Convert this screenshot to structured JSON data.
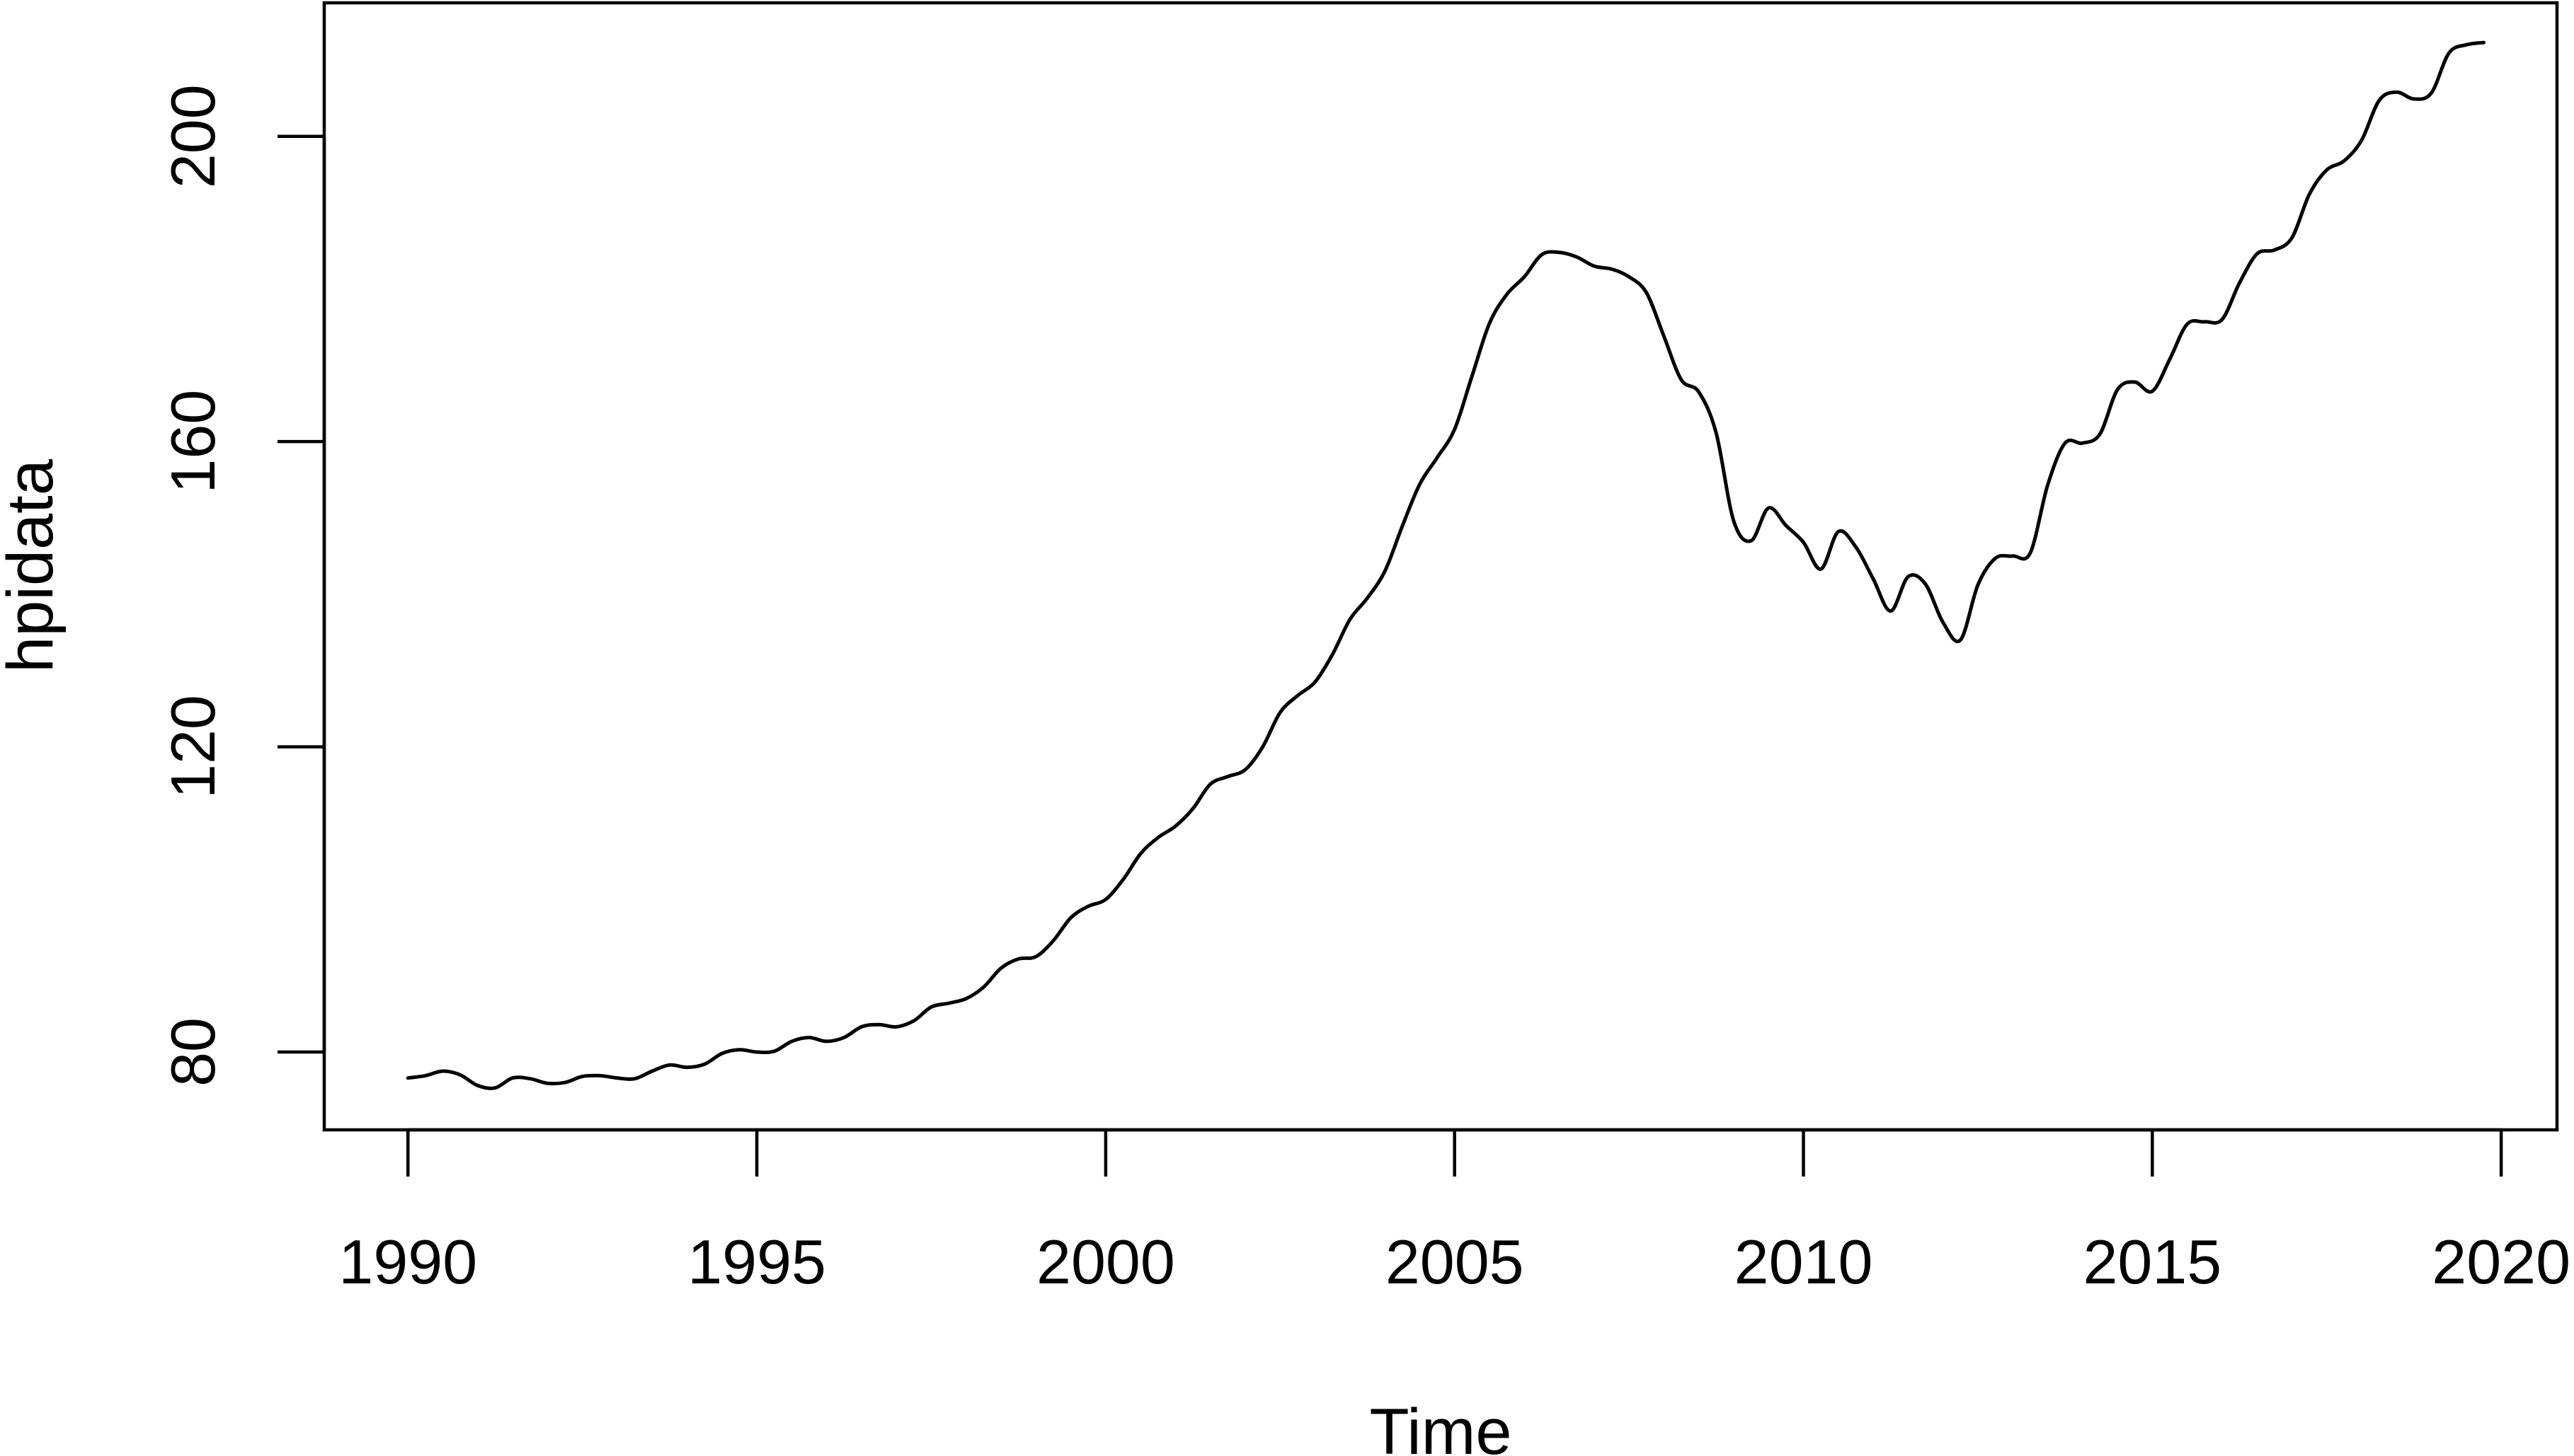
{
  "chart_data": {
    "type": "line",
    "title": "",
    "xlabel": "Time",
    "ylabel": "hpidata",
    "xlim": [
      1988.8,
      2020.8
    ],
    "ylim": [
      69.8,
      217.5
    ],
    "grid": false,
    "legend": "none",
    "x_ticks": [
      1990,
      1995,
      2000,
      2005,
      2010,
      2015,
      2020
    ],
    "y_ticks": [
      80,
      120,
      160,
      200
    ],
    "x_tick_labels": [
      "1990",
      "1995",
      "2000",
      "2005",
      "2010",
      "2015",
      "2020"
    ],
    "y_tick_labels": [
      "80",
      "120",
      "160",
      "200"
    ],
    "series": [
      {
        "line_color": "#000000",
        "x": [
          1990.0,
          1990.25,
          1990.5,
          1990.75,
          1991.0,
          1991.25,
          1991.5,
          1991.75,
          1992.0,
          1992.25,
          1992.5,
          1992.75,
          1993.0,
          1993.25,
          1993.5,
          1993.75,
          1994.0,
          1994.25,
          1994.5,
          1994.75,
          1995.0,
          1995.25,
          1995.5,
          1995.75,
          1996.0,
          1996.25,
          1996.5,
          1996.75,
          1997.0,
          1997.25,
          1997.5,
          1997.75,
          1998.0,
          1998.25,
          1998.5,
          1998.75,
          1999.0,
          1999.25,
          1999.5,
          1999.75,
          2000.0,
          2000.25,
          2000.5,
          2000.75,
          2001.0,
          2001.25,
          2001.5,
          2001.75,
          2002.0,
          2002.25,
          2002.5,
          2002.75,
          2003.0,
          2003.25,
          2003.5,
          2003.75,
          2004.0,
          2004.25,
          2004.5,
          2004.75,
          2005.0,
          2005.25,
          2005.5,
          2005.75,
          2006.0,
          2006.25,
          2006.5,
          2006.75,
          2007.0,
          2007.25,
          2007.5,
          2007.75,
          2008.0,
          2008.25,
          2008.5,
          2008.75,
          2009.0,
          2009.25,
          2009.5,
          2009.75,
          2010.0,
          2010.25,
          2010.5,
          2010.75,
          2011.0,
          2011.25,
          2011.5,
          2011.75,
          2012.0,
          2012.25,
          2012.5,
          2012.75,
          2013.0,
          2013.25,
          2013.5,
          2013.75,
          2014.0,
          2014.25,
          2014.5,
          2014.75,
          2015.0,
          2015.25,
          2015.5,
          2015.75,
          2016.0,
          2016.25,
          2016.5,
          2016.75,
          2017.0,
          2017.25,
          2017.5,
          2017.75,
          2018.0,
          2018.25,
          2018.5,
          2018.75,
          2019.0,
          2019.25,
          2019.5,
          2019.75
        ],
        "y": [
          76.6,
          76.9,
          77.5,
          77.0,
          75.6,
          75.3,
          76.6,
          76.5,
          75.9,
          76.0,
          76.8,
          76.9,
          76.6,
          76.5,
          77.5,
          78.3,
          78.0,
          78.4,
          79.8,
          80.3,
          80.0,
          80.1,
          81.4,
          81.9,
          81.4,
          81.9,
          83.3,
          83.6,
          83.3,
          84.1,
          85.9,
          86.4,
          87.0,
          88.5,
          91.0,
          92.2,
          92.5,
          94.6,
          97.6,
          99.1,
          100.0,
          102.6,
          106.0,
          108.1,
          109.6,
          111.9,
          115.1,
          116.1,
          117.0,
          120.0,
          124.5,
          126.7,
          128.5,
          132.1,
          136.7,
          139.5,
          143.0,
          148.9,
          154.4,
          157.9,
          161.6,
          168.6,
          175.5,
          179.3,
          181.6,
          184.5,
          184.8,
          184.2,
          183.0,
          182.6,
          181.6,
          179.5,
          173.8,
          168.1,
          166.5,
          161.1,
          149.6,
          147.0,
          151.3,
          149.0,
          146.8,
          143.3,
          148.2,
          146.2,
          142.0,
          137.8,
          142.3,
          141.3,
          136.3,
          134.0,
          141.2,
          144.7,
          145.0,
          145.4,
          154.3,
          159.8,
          159.8,
          161.0,
          166.8,
          167.8,
          166.6,
          170.8,
          175.4,
          175.7,
          176.0,
          180.8,
          184.6,
          185.1,
          186.7,
          192.4,
          195.6,
          196.8,
          199.5,
          204.7,
          205.8,
          204.9,
          205.7,
          210.9,
          212.0,
          212.3
        ]
      }
    ]
  }
}
